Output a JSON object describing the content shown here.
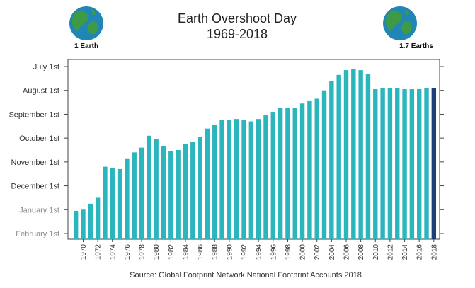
{
  "header": {
    "title": "Earth Overshoot Day",
    "subtitle": "1969-2018",
    "left_label": "1 Earth",
    "right_label": "1.7 Earths"
  },
  "source": "Source: Global Footprint Network National Footprint Accounts 2018",
  "icons": {
    "left": "earth-globe-icon",
    "right": "earth-globe-icon"
  },
  "colors": {
    "bar": "#2bb5bd",
    "highlight_bar": "#1b3f7a",
    "ocean": "#1f86b5",
    "land": "#3f9a45"
  },
  "chart_data": {
    "type": "bar",
    "title": "Earth Overshoot Day",
    "subtitle": "1969-2018",
    "xlabel": "",
    "ylabel": "",
    "y_tick_labels": [
      "July 1st",
      "August 1st",
      "September 1st",
      "October 1st",
      "November 1st",
      "December 1st",
      "January 1st",
      "February 1st"
    ],
    "y_faded_labels": [
      "January 1st",
      "February 1st"
    ],
    "ylim_note": "months from July 1st (0) down to February 1st (7)",
    "ylim": [
      0,
      7
    ],
    "x_tick_labels": [
      "1970",
      "1972",
      "1974",
      "1976",
      "1978",
      "1980",
      "1982",
      "1984",
      "1986",
      "1988",
      "1990",
      "1992",
      "1994",
      "1996",
      "1998",
      "2000",
      "2002",
      "2004",
      "2006",
      "2008",
      "2010",
      "2012",
      "2014",
      "2016",
      "2018"
    ],
    "categories": [
      1969,
      1970,
      1971,
      1972,
      1973,
      1974,
      1975,
      1976,
      1977,
      1978,
      1979,
      1980,
      1981,
      1982,
      1983,
      1984,
      1985,
      1986,
      1987,
      1988,
      1989,
      1990,
      1991,
      1992,
      1993,
      1994,
      1995,
      1996,
      1997,
      1998,
      1999,
      2000,
      2001,
      2002,
      2003,
      2004,
      2005,
      2006,
      2007,
      2008,
      2009,
      2010,
      2011,
      2012,
      2013,
      2014,
      2015,
      2016,
      2017,
      2018
    ],
    "values": [
      6.05,
      6.0,
      5.75,
      5.5,
      4.2,
      4.25,
      4.3,
      3.85,
      3.6,
      3.4,
      2.9,
      3.05,
      3.35,
      3.55,
      3.5,
      3.25,
      3.15,
      2.95,
      2.6,
      2.45,
      2.25,
      2.25,
      2.2,
      2.25,
      2.3,
      2.2,
      2.05,
      1.9,
      1.75,
      1.75,
      1.75,
      1.55,
      1.45,
      1.35,
      1.0,
      0.6,
      0.35,
      0.15,
      0.1,
      0.15,
      0.3,
      0.95,
      0.9,
      0.9,
      0.9,
      0.95,
      0.95,
      0.95,
      0.9,
      0.9
    ],
    "highlight": 2018,
    "grid": false,
    "legend": "none"
  }
}
